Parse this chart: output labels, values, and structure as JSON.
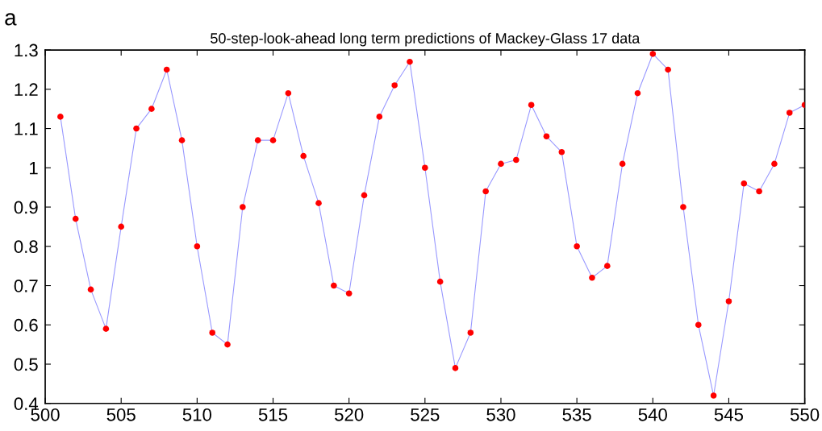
{
  "chart_data": {
    "type": "line",
    "title": "50-step-look-ahead long term predictions of Mackey-Glass 17 data",
    "annotations": [
      "a"
    ],
    "x": [
      501,
      502,
      503,
      504,
      505,
      506,
      507,
      508,
      509,
      510,
      511,
      512,
      513,
      514,
      515,
      516,
      517,
      518,
      519,
      520,
      521,
      522,
      523,
      524,
      525,
      526,
      527,
      528,
      529,
      530,
      531,
      532,
      533,
      534,
      535,
      536,
      537,
      538,
      539,
      540,
      541,
      542,
      543,
      544,
      545,
      546,
      547,
      548,
      549,
      550
    ],
    "series": [
      {
        "color": "#9999ff",
        "colors": [
          "#ff0000",
          "#ff0000",
          "#ff0000",
          "#ff0000",
          "#ff0000",
          "#ff0000",
          "#ff0000",
          "#ff0000",
          "#ff0000",
          "#ff0000",
          "#ff0000",
          "#ff0000",
          "#ff0000",
          "#ff0000",
          "#ff0000",
          "#ff0000",
          "#ff0000",
          "#ff0000",
          "#ff0000",
          "#ff0000",
          "#ff0000",
          "#ff0000",
          "#ff0000",
          "#ff0000",
          "#ff0000",
          "#ff0000",
          "#ff0000",
          "#ff0000",
          "#ff0000",
          "#ff0000",
          "#ff0000",
          "#ff0000",
          "#ff0000",
          "#ff0000",
          "#ff0000",
          "#ff0000",
          "#ff0000",
          "#ff0000",
          "#ff0000",
          "#ff0000",
          "#ff0000",
          "#ff0000",
          "#ff0000",
          "#ff0000",
          "#ff0000",
          "#ff0000",
          "#ff0000",
          "#ff0000",
          "#ff0000",
          "#ff0000"
        ],
        "values": [
          1.13,
          0.87,
          0.69,
          0.59,
          0.85,
          1.1,
          1.15,
          1.25,
          1.07,
          0.8,
          0.58,
          0.55,
          0.9,
          1.07,
          1.07,
          1.19,
          1.03,
          0.91,
          0.7,
          0.68,
          0.93,
          1.13,
          1.21,
          1.27,
          1.0,
          0.71,
          0.49,
          0.58,
          0.94,
          1.01,
          1.02,
          1.16,
          1.08,
          1.04,
          0.8,
          0.72,
          0.75,
          1.01,
          1.19,
          1.29,
          1.25,
          0.9,
          0.6,
          0.42,
          0.66,
          0.96,
          0.94,
          1.01,
          1.14,
          1.16
        ]
      }
    ],
    "marker": "circle",
    "line_style": "solid",
    "grid": false,
    "legend": false,
    "xlim": [
      500,
      550
    ],
    "xticks": [
      500,
      505,
      510,
      515,
      520,
      525,
      530,
      535,
      540,
      545,
      550
    ],
    "ylim": [
      0.4,
      1.3
    ],
    "yticks": [
      0.4,
      0.5,
      0.6,
      0.7,
      0.8,
      0.9,
      {
        "value": 1,
        "label": "1"
      },
      1.1,
      1.2,
      1.3
    ]
  }
}
